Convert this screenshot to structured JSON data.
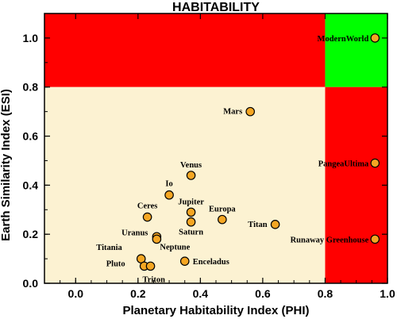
{
  "chart_data": {
    "type": "scatter",
    "title": "HABITABILITY",
    "xlabel": "Planetary Habitability Index (PHI)",
    "ylabel": "Earth Similarity Index (ESI)",
    "xlim": [
      -0.1,
      1.0
    ],
    "ylim": [
      0.0,
      1.1
    ],
    "xticks": [
      "0.0",
      "0.2",
      "0.4",
      "0.6",
      "0.8",
      "1.0"
    ],
    "yticks": [
      "0.0",
      "0.2",
      "0.4",
      "0.6",
      "0.8",
      "1.0"
    ],
    "regions": [
      {
        "x": [
          -0.1,
          0.8
        ],
        "y": [
          0.8,
          1.1
        ],
        "color": "#ff0000"
      },
      {
        "x": [
          0.8,
          1.0
        ],
        "y": [
          0.8,
          1.1
        ],
        "color": "#00ff00"
      },
      {
        "x": [
          0.8,
          1.0
        ],
        "y": [
          0.0,
          0.8
        ],
        "color": "#ff0000"
      },
      {
        "x": [
          -0.1,
          0.8
        ],
        "y": [
          0.0,
          0.8
        ],
        "color": "#fcf2d2"
      }
    ],
    "marker_color": "#f5a623",
    "points": [
      {
        "name": "ModernWorld",
        "x": 0.96,
        "y": 1.0
      },
      {
        "name": "Mars",
        "x": 0.56,
        "y": 0.7
      },
      {
        "name": "PangeaUltima",
        "x": 0.96,
        "y": 0.49
      },
      {
        "name": "Venus",
        "x": 0.37,
        "y": 0.44
      },
      {
        "name": "Io",
        "x": 0.3,
        "y": 0.36
      },
      {
        "name": "Jupiter",
        "x": 0.37,
        "y": 0.29
      },
      {
        "name": "Ceres",
        "x": 0.23,
        "y": 0.27
      },
      {
        "name": "Europa",
        "x": 0.47,
        "y": 0.26
      },
      {
        "name": "Saturn",
        "x": 0.37,
        "y": 0.25
      },
      {
        "name": "Titan",
        "x": 0.64,
        "y": 0.24
      },
      {
        "name": "Uranus",
        "x": 0.26,
        "y": 0.19
      },
      {
        "name": "Neptune",
        "x": 0.26,
        "y": 0.18
      },
      {
        "name": "Runaway Greenhouse",
        "x": 0.96,
        "y": 0.18
      },
      {
        "name": "Titania",
        "x": 0.21,
        "y": 0.1
      },
      {
        "name": "Enceladus",
        "x": 0.35,
        "y": 0.09
      },
      {
        "name": "Pluto",
        "x": 0.22,
        "y": 0.07
      },
      {
        "name": "Triton",
        "x": 0.24,
        "y": 0.07
      }
    ]
  }
}
